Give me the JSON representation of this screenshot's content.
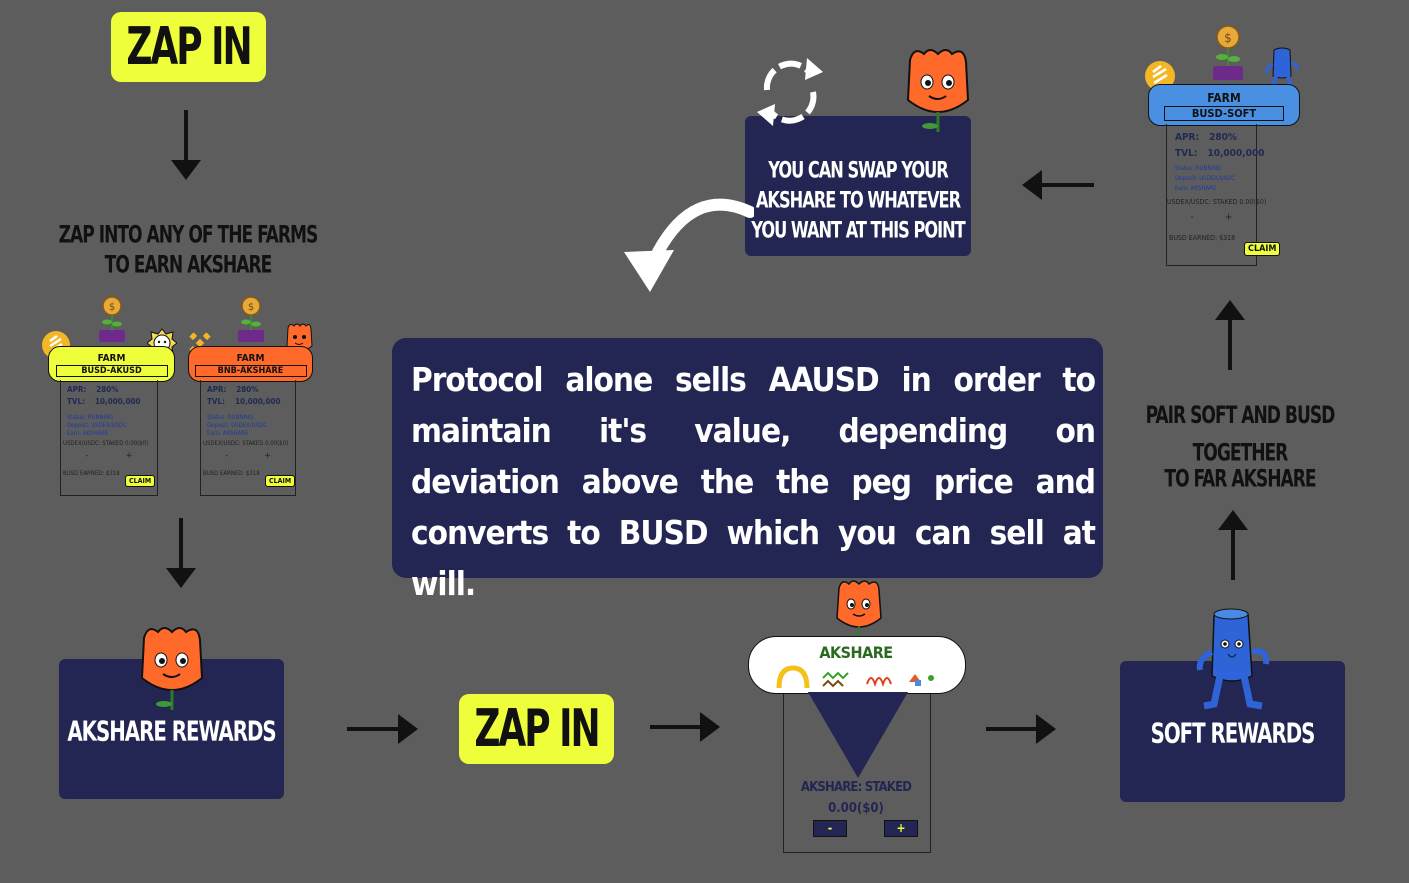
{
  "zap_top": "ZAP IN",
  "zap_mid": "ZAP IN",
  "caption_farms": [
    "ZAP INTO ANY OF THE FARMS",
    "TO EARN AKSHARE"
  ],
  "caption_pair": [
    "PAIR SOFT AND BUSD TOGETHER",
    "TO FAR AKSHARE"
  ],
  "swap_box": [
    "YOU CAN SWAP YOUR",
    "AKSHARE TO WHATEVER",
    "YOU WANT AT THIS POINT"
  ],
  "main_text": "Protocol alone sells AAUSD in order to maintain it's value, depending on deviation above the the peg price and converts to BUSD which you can sell at will.",
  "akshare_rewards": "AKSHARE REWARDS",
  "soft_rewards": "SOFT REWARDS",
  "farms": [
    {
      "label": "FARM",
      "pair": "BUSD-AKUSD",
      "apr_label": "APR:",
      "apr": "280%",
      "tvl_label": "TVL:",
      "tvl": "10,000,000",
      "status_label": "Status:",
      "status": "RUNNING",
      "deposit_label": "Deposit:",
      "deposit": "USDEX/USDC",
      "earn_label": "Earn:",
      "earn": "AKSHARE",
      "staked": "USDEX/USDC: STAKED 0.00($0)",
      "minus": "-",
      "plus": "+",
      "earned": "BUSD EARNED: $318",
      "claim": "CLAIM"
    },
    {
      "label": "FARM",
      "pair": "BNB-AKSHARE",
      "apr_label": "APR:",
      "apr": "280%",
      "tvl_label": "TVL:",
      "tvl": "10,000,000",
      "status_label": "Status:",
      "status": "RUNNING",
      "deposit_label": "Deposit:",
      "deposit": "USDEX/USDC",
      "earn_label": "Earn:",
      "earn": "AKSHARE",
      "staked": "USDEX/USDC: STAKED 0.00($0)",
      "minus": "-",
      "plus": "+",
      "earned": "BUSD EARNED: $318",
      "claim": "CLAIM"
    },
    {
      "label": "FARM",
      "pair": "BUSD-SOFT",
      "apr_label": "APR:",
      "apr": "280%",
      "tvl_label": "TVL:",
      "tvl": "10,000,000",
      "status_label": "Status:",
      "status": "RUNNING",
      "deposit_label": "Deposit:",
      "deposit": "USDEX/USDC",
      "earn_label": "Earn:",
      "earn": "AKSHARE",
      "staked": "USDEX/USDC: STAKED 0.00($0)",
      "minus": "-",
      "plus": "+",
      "earned": "BUSD EARNED: $318",
      "claim": "CLAIM"
    }
  ],
  "stake_card": {
    "title": "AKSHARE",
    "staked_label": "AKSHARE: STAKED",
    "staked_value": "0.00($0)",
    "minus": "-",
    "plus": "+"
  },
  "colors": {
    "background": "#5d5d5d",
    "navy": "#232653",
    "yellow": "#eefe3a",
    "orange": "#ff6a2a",
    "blue": "#4a90e2"
  }
}
